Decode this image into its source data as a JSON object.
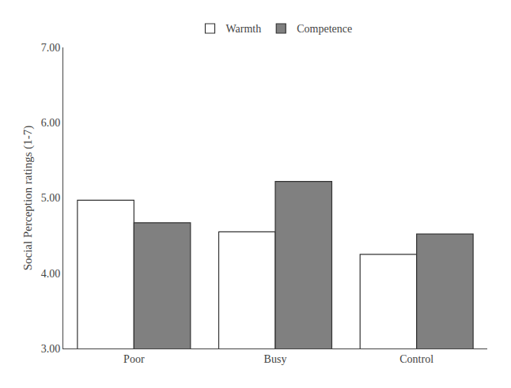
{
  "chart_data": {
    "type": "bar",
    "categories": [
      "Poor",
      "Busy",
      "Control"
    ],
    "series": [
      {
        "name": "Warmth",
        "color": "#ffffff",
        "values": [
          4.97,
          4.55,
          4.25
        ]
      },
      {
        "name": "Competence",
        "color": "#808080",
        "values": [
          4.67,
          5.22,
          4.52
        ]
      }
    ],
    "ylabel": "Social Perception ratings (1-7)",
    "ylim": [
      3.0,
      7.0
    ],
    "yticks": [
      {
        "value": 3.0,
        "label": "3.00"
      },
      {
        "value": 4.0,
        "label": "4.00"
      },
      {
        "value": 5.0,
        "label": "5.00"
      },
      {
        "value": 6.0,
        "label": "6.00"
      },
      {
        "value": 7.0,
        "label": "7.00"
      }
    ],
    "grid": false,
    "legend": "top"
  }
}
